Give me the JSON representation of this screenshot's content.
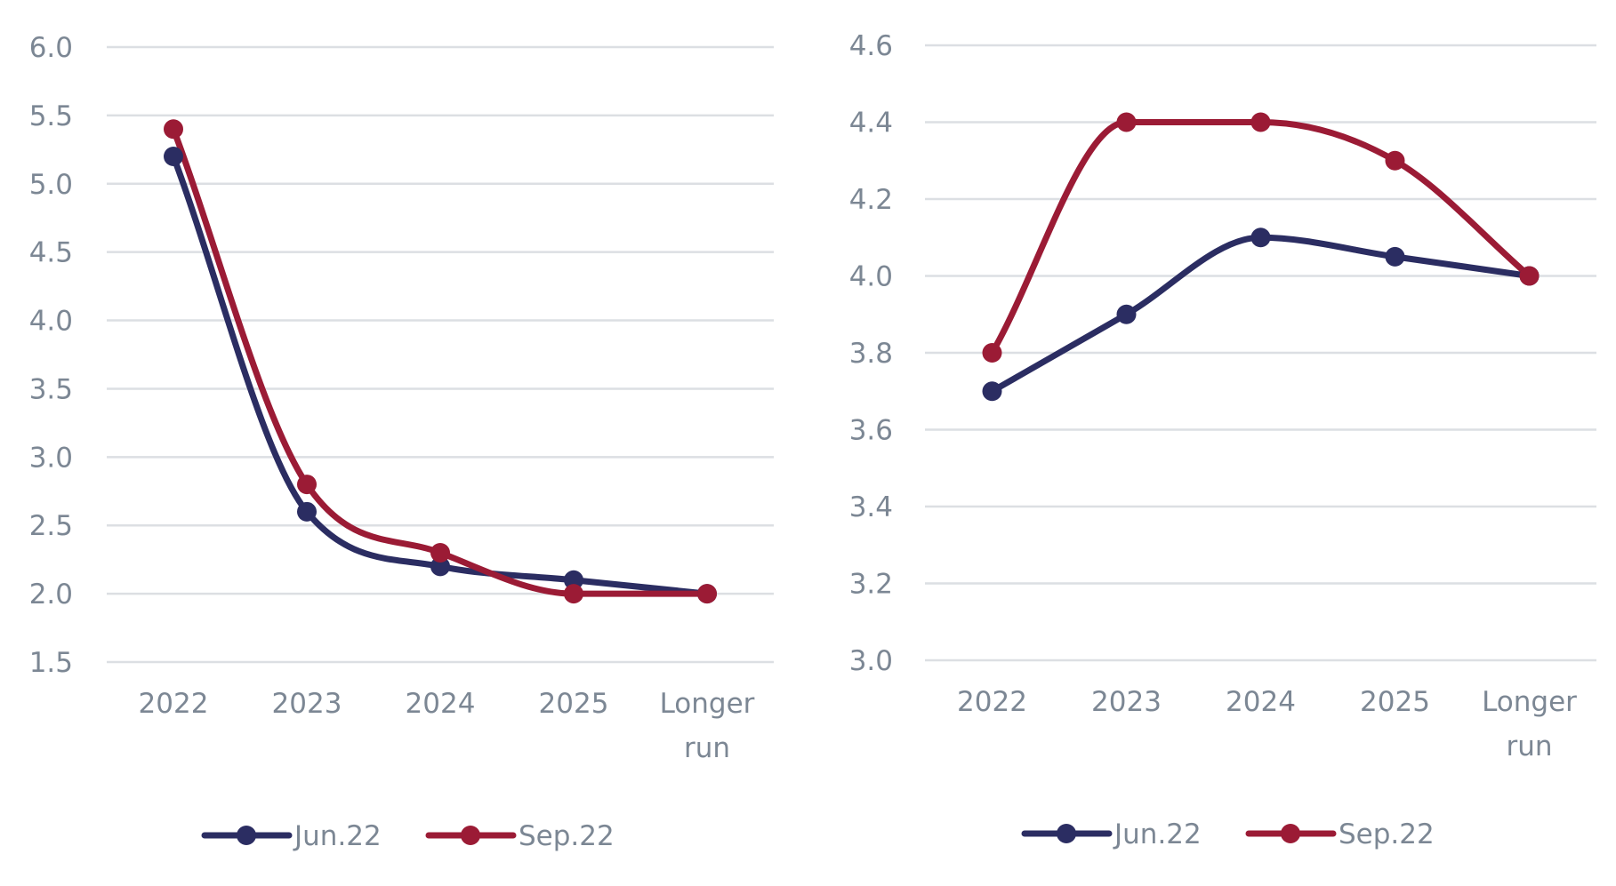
{
  "chart_data": [
    {
      "type": "line",
      "title": "",
      "xlabel": "",
      "ylabel": "",
      "categories": [
        [
          "2022"
        ],
        [
          "2023"
        ],
        [
          "2024"
        ],
        [
          "2025"
        ],
        [
          "Longer",
          "run"
        ]
      ],
      "ylim": [
        1.5,
        6.0
      ],
      "yticks": [
        1.5,
        2.0,
        2.5,
        3.0,
        3.5,
        4.0,
        4.5,
        5.0,
        5.5,
        6.0
      ],
      "ytick_labels": [
        "1.5",
        "2.0",
        "2.5",
        "3.0",
        "3.5",
        "4.0",
        "4.5",
        "5.0",
        "5.5",
        "6.0"
      ],
      "grid": true,
      "legend": "bottom",
      "smooth": true,
      "series": [
        {
          "name": "Jun.22",
          "color": "#2b2d62",
          "values": [
            5.2,
            2.6,
            2.2,
            2.1,
            2.0
          ]
        },
        {
          "name": "Sep.22",
          "color": "#9b1b35",
          "values": [
            5.4,
            2.8,
            2.3,
            2.0,
            2.0
          ]
        }
      ]
    },
    {
      "type": "line",
      "title": "",
      "xlabel": "",
      "ylabel": "",
      "categories": [
        [
          "2022"
        ],
        [
          "2023"
        ],
        [
          "2024"
        ],
        [
          "2025"
        ],
        [
          "Longer",
          "run"
        ]
      ],
      "ylim": [
        3.0,
        4.6
      ],
      "yticks": [
        3.0,
        3.2,
        3.4,
        3.6,
        3.8,
        4.0,
        4.2,
        4.4,
        4.6
      ],
      "ytick_labels": [
        "3.0",
        "3.2",
        "3.4",
        "3.6",
        "3.8",
        "4.0",
        "4.2",
        "4.4",
        "4.6"
      ],
      "grid": true,
      "legend": "bottom",
      "smooth": true,
      "series": [
        {
          "name": "Jun.22",
          "color": "#2b2d62",
          "values": [
            3.7,
            3.9,
            4.1,
            4.05,
            4.0
          ]
        },
        {
          "name": "Sep.22",
          "color": "#9b1b35",
          "values": [
            3.8,
            4.4,
            4.4,
            4.3,
            4.0
          ]
        }
      ]
    }
  ]
}
